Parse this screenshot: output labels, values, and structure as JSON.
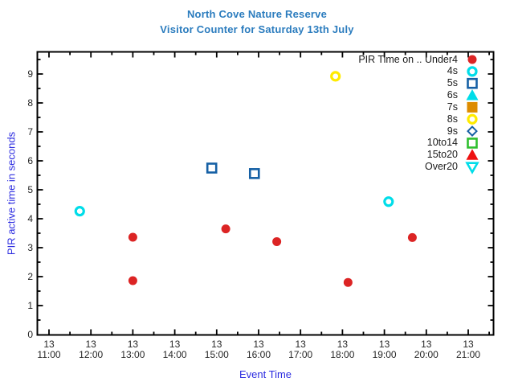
{
  "title": {
    "line1": "North Cove Nature Reserve",
    "line2": "Visitor Counter for Saturday 13th July"
  },
  "colors": {
    "title_text": "#2b7cbe",
    "axis_label_text": "#2d2de0",
    "tick_text": "#262626",
    "plot_border": "#000000",
    "under4_red": "#dc2424",
    "cyan": "#00dde9",
    "navy_blue": "#1660a5",
    "orange": "#dd8c00",
    "yellow": "#ffeb00",
    "green": "#2fbf2f",
    "bright_red": "#ee1111"
  },
  "chart_data": {
    "type": "scatter",
    "title": "North Cove Nature Reserve",
    "subtitle": "Visitor Counter for Saturday 13th July",
    "xlabel": "Event Time",
    "ylabel": "PIR active time in seconds",
    "x_day_label": "13",
    "x_ticks": [
      "11:00",
      "12:00",
      "13:00",
      "14:00",
      "15:00",
      "16:00",
      "17:00",
      "18:00",
      "19:00",
      "20:00",
      "21:00"
    ],
    "x_minor_tick_minutes": 30,
    "x_range": [
      "10:43",
      "21:36"
    ],
    "ylim": [
      0,
      9.76
    ],
    "y_major_step": 1,
    "y_minor_step": 0.5,
    "grid": false,
    "legend_position": "top-right-inside",
    "legend_title": "PIR Time on .. Under4",
    "series": [
      {
        "name": "Under4",
        "marker": "circle-filled",
        "color": "#dc2424",
        "points": [
          [
            "13:00",
            3.36
          ],
          [
            "13:00",
            1.86
          ],
          [
            "15:13",
            3.65
          ],
          [
            "16:26",
            3.21
          ],
          [
            "18:08",
            1.8
          ],
          [
            "19:40",
            3.35
          ]
        ]
      },
      {
        "name": "4s",
        "marker": "circle-open",
        "color": "#00dde9",
        "points": [
          [
            "11:44",
            4.26
          ],
          [
            "19:06",
            4.59
          ]
        ]
      },
      {
        "name": "5s",
        "marker": "square-open",
        "color": "#1660a5",
        "points": [
          [
            "14:53",
            5.75
          ],
          [
            "15:54",
            5.56
          ]
        ]
      },
      {
        "name": "6s",
        "marker": "triangle-up-filled",
        "color": "#00dde9",
        "points": []
      },
      {
        "name": "7s",
        "marker": "square-filled",
        "color": "#dd8c00",
        "points": []
      },
      {
        "name": "8s",
        "marker": "circle-open",
        "color": "#ffeb00",
        "points": [
          [
            "17:50",
            8.92
          ]
        ]
      },
      {
        "name": "9s",
        "marker": "diamond-open",
        "color": "#1660a5",
        "points": []
      },
      {
        "name": "10to14",
        "marker": "square-open",
        "color": "#2fbf2f",
        "points": []
      },
      {
        "name": "15to20",
        "marker": "triangle-up-filled",
        "color": "#ee1111",
        "points": []
      },
      {
        "name": "Over20",
        "marker": "triangle-down-open",
        "color": "#00dde9",
        "points": []
      }
    ]
  }
}
